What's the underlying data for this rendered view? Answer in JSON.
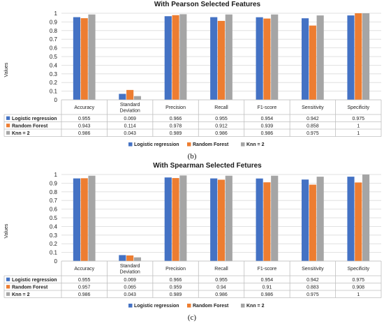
{
  "colors": {
    "logistic": "#4472C4",
    "rf": "#ED7D31",
    "knn": "#A5A5A5",
    "grid": "#D9D9D9",
    "table_border": "#BFBFBF"
  },
  "chart_data": [
    {
      "type": "bar",
      "title": "With Pearson Selected Features",
      "ylabel": "Values",
      "xlabel": "",
      "ylim": [
        0,
        1
      ],
      "yticks": [
        "0",
        "0.1",
        "0.2",
        "0.3",
        "0.4",
        "0.5",
        "0.6",
        "0.7",
        "0.8",
        "0.9",
        "1"
      ],
      "grid": true,
      "legend_position": "bottom",
      "data_table": true,
      "caption": "(b)",
      "categories": [
        "Accuracy",
        "Standard Deviation",
        "Precision",
        "Recall",
        "F1-score",
        "Sensitivity",
        "Specificity"
      ],
      "series": [
        {
          "name": "Logistic regression",
          "values": [
            0.955,
            0.069,
            0.966,
            0.955,
            0.954,
            0.942,
            0.975
          ],
          "labels": [
            "0.955",
            "0.069",
            "0.966",
            "0.955",
            "0.954",
            "0.942",
            "0.975"
          ]
        },
        {
          "name": "Random Forest",
          "values": [
            0.943,
            0.114,
            0.978,
            0.912,
            0.939,
            0.858,
            1
          ],
          "labels": [
            "0.943",
            "0.114",
            "0.978",
            "0.912",
            "0.939",
            "0.858",
            "1"
          ]
        },
        {
          "name": "Knn = 2",
          "values": [
            0.986,
            0.043,
            0.989,
            0.986,
            0.986,
            0.975,
            1
          ],
          "labels": [
            "0.986",
            "0.043",
            "0.989",
            "0.986",
            "0.986",
            "0.975",
            "1"
          ]
        }
      ]
    },
    {
      "type": "bar",
      "title": "With Spearman Selected Fetures",
      "ylabel": "Values",
      "xlabel": "",
      "ylim": [
        0,
        1
      ],
      "yticks": [
        "0",
        "0.1",
        "0.2",
        "0.3",
        "0.4",
        "0.5",
        "0.6",
        "0.7",
        "0.8",
        "0.9",
        "1"
      ],
      "grid": true,
      "legend_position": "bottom",
      "data_table": true,
      "caption": "(c)",
      "categories": [
        "Accuracy",
        "Standard Deviation",
        "Precision",
        "Recall",
        "F1-score",
        "Sensitivity",
        "Specificity"
      ],
      "series": [
        {
          "name": "Logistic regression",
          "values": [
            0.955,
            0.069,
            0.966,
            0.955,
            0.954,
            0.942,
            0.975
          ],
          "labels": [
            "0.955",
            "0.069",
            "0.966",
            "0.955",
            "0.954",
            "0.942",
            "0.975"
          ]
        },
        {
          "name": "Random Forest",
          "values": [
            0.957,
            0.065,
            0.959,
            0.94,
            0.91,
            0.883,
            0.908
          ],
          "labels": [
            "0.957",
            "0.065",
            "0.959",
            "0.94",
            "0.91",
            "0.883",
            "0.908"
          ]
        },
        {
          "name": "Knn = 2",
          "values": [
            0.986,
            0.043,
            0.989,
            0.986,
            0.986,
            0.975,
            1
          ],
          "labels": [
            "0.986",
            "0.043",
            "0.989",
            "0.986",
            "0.986",
            "0.975",
            "1"
          ]
        }
      ]
    }
  ]
}
